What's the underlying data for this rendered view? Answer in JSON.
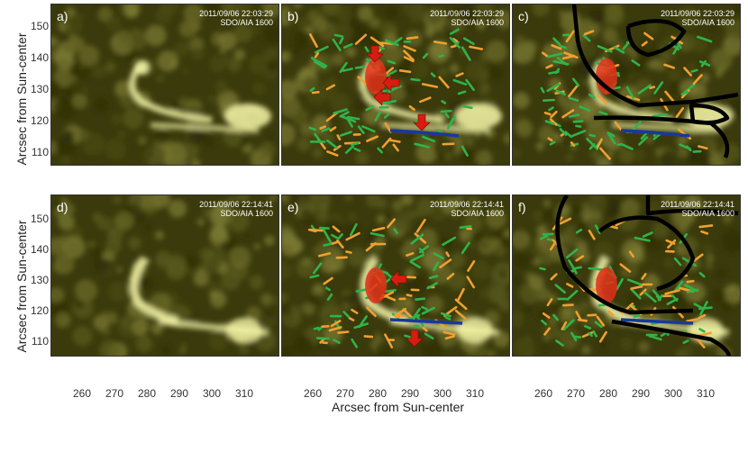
{
  "figure": {
    "ylabel": "Arcsec from Sun-center",
    "xlabel": "Arcsec from Sun-center",
    "yticks": [
      "150",
      "140",
      "130",
      "120",
      "110"
    ],
    "xticks": [
      "260",
      "270",
      "280",
      "290",
      "300",
      "310"
    ],
    "panels": [
      {
        "label": "a)",
        "date": "2011/09/06 22:03:29",
        "instrument": "SDO/AIA 1600"
      },
      {
        "label": "b)",
        "date": "2011/09/06 22:03:29",
        "instrument": "SDO/AIA 1600"
      },
      {
        "label": "c)",
        "date": "2011/09/06 22:03:29",
        "instrument": "SDO/AIA 1600"
      },
      {
        "label": "d)",
        "date": "2011/09/06 22:14:41",
        "instrument": "SDO/AIA 1600"
      },
      {
        "label": "e)",
        "date": "2011/09/06 22:14:41",
        "instrument": "SDO/AIA 1600"
      },
      {
        "label": "f)",
        "date": "2011/09/06 22:14:41",
        "instrument": "SDO/AIA 1600"
      }
    ],
    "colors": {
      "background": "#3a3a0c",
      "bright": "#f6f6a8",
      "green": "#2fb34a",
      "orange": "#f0a030",
      "red": "#e03018",
      "blue": "#1838a0",
      "contour": "#000000",
      "arrow": "#d81c10"
    }
  }
}
